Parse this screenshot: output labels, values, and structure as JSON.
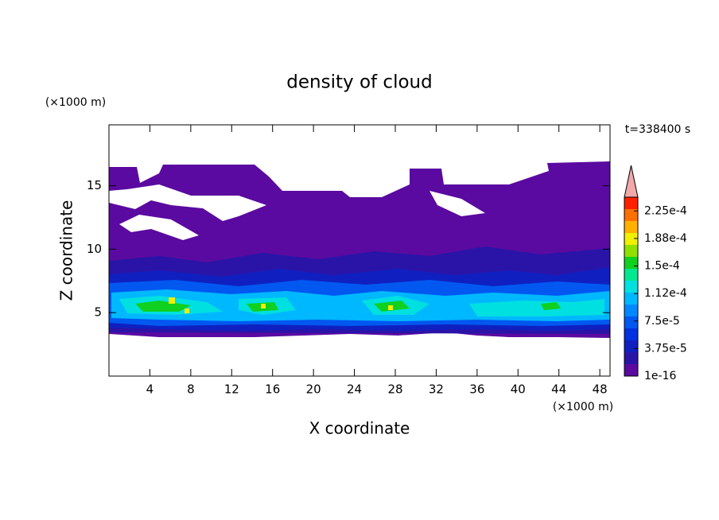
{
  "chart_data": {
    "type": "contour",
    "title": "density of cloud",
    "xlabel": "X coordinate",
    "ylabel": "Z coordinate",
    "xunit": "(×1000 m)",
    "yunit": "(×1000 m)",
    "time_label": "t=338400 s",
    "xlim": [
      0,
      49
    ],
    "ylim": [
      0,
      19.8
    ],
    "xticks": [
      4,
      8,
      12,
      16,
      20,
      24,
      28,
      32,
      36,
      40,
      44,
      48
    ],
    "yticks": [
      5,
      10,
      15
    ],
    "colorbar": {
      "lim": [
        0,
        0.00024375
      ],
      "colors": [
        "#5a0aa0",
        "#2a14a8",
        "#1020c0",
        "#0030e0",
        "#0058f0",
        "#0088ff",
        "#00b8ff",
        "#00e0e0",
        "#00e890",
        "#10d020",
        "#90e000",
        "#f0f000",
        "#ffb000",
        "#ff7000",
        "#ff2000"
      ],
      "extend_color": "#f0a8a8",
      "ticks": [
        1e-16,
        {
          "value": 3.75e-05,
          "label": "3.75e-5"
        },
        {
          "value": 7.5e-05,
          "label": "7.5e-5"
        },
        {
          "value": 0.0001125,
          "label": "1.12e-4"
        },
        {
          "value": 0.00015,
          "label": "1.5e-4"
        },
        {
          "value": 0.0001875,
          "label": "1.88e-4"
        },
        {
          "value": 0.000225,
          "label": "2.25e-4"
        }
      ]
    }
  }
}
